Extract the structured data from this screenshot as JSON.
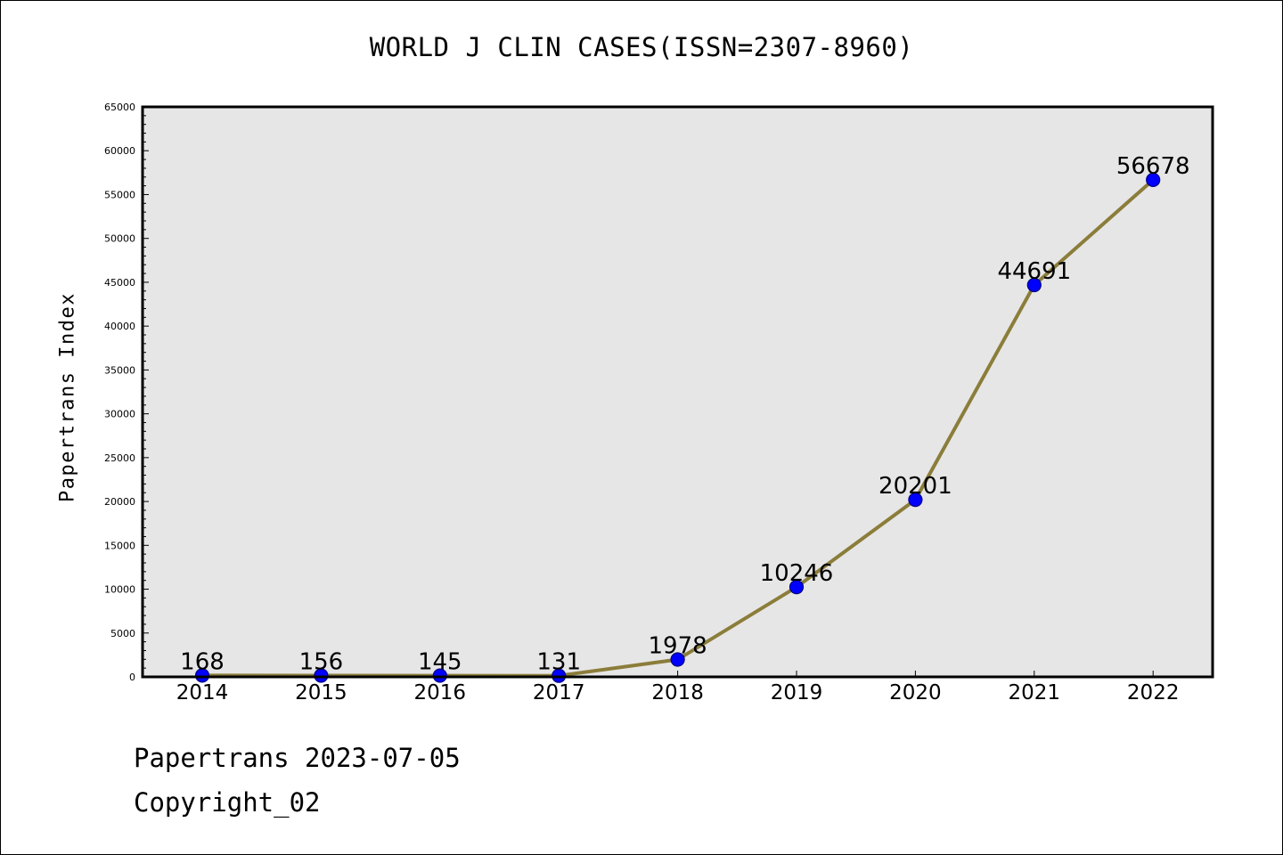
{
  "chart_data": {
    "type": "line",
    "title": "WORLD J CLIN CASES(ISSN=2307-8960)",
    "xlabel": "",
    "ylabel": "Papertrans Index",
    "categories": [
      "2014",
      "2015",
      "2016",
      "2017",
      "2018",
      "2019",
      "2020",
      "2021",
      "2022"
    ],
    "series": [
      {
        "values": [
          168,
          156,
          145,
          131,
          1978,
          10246,
          20201,
          44691,
          56678
        ],
        "labels": [
          "168",
          "156",
          "145",
          "131",
          "1978",
          "10246",
          "20201",
          "44691",
          "56678"
        ]
      }
    ],
    "ylim": [
      0,
      65000
    ],
    "yticks": [
      "0",
      "5000",
      "10000",
      "15000",
      "20000",
      "25000",
      "30000",
      "35000",
      "40000",
      "45000",
      "50000",
      "55000",
      "60000",
      "65000"
    ],
    "grid": false,
    "legend": "none",
    "colors": {
      "line": "#8B7D3A",
      "marker_fill": "#0000FF",
      "marker_edge": "#000080",
      "plot_background": "#E6E6E6"
    }
  },
  "footer": {
    "date_line": "Papertrans 2023-07-05",
    "copyright_line": "Copyright_02"
  }
}
